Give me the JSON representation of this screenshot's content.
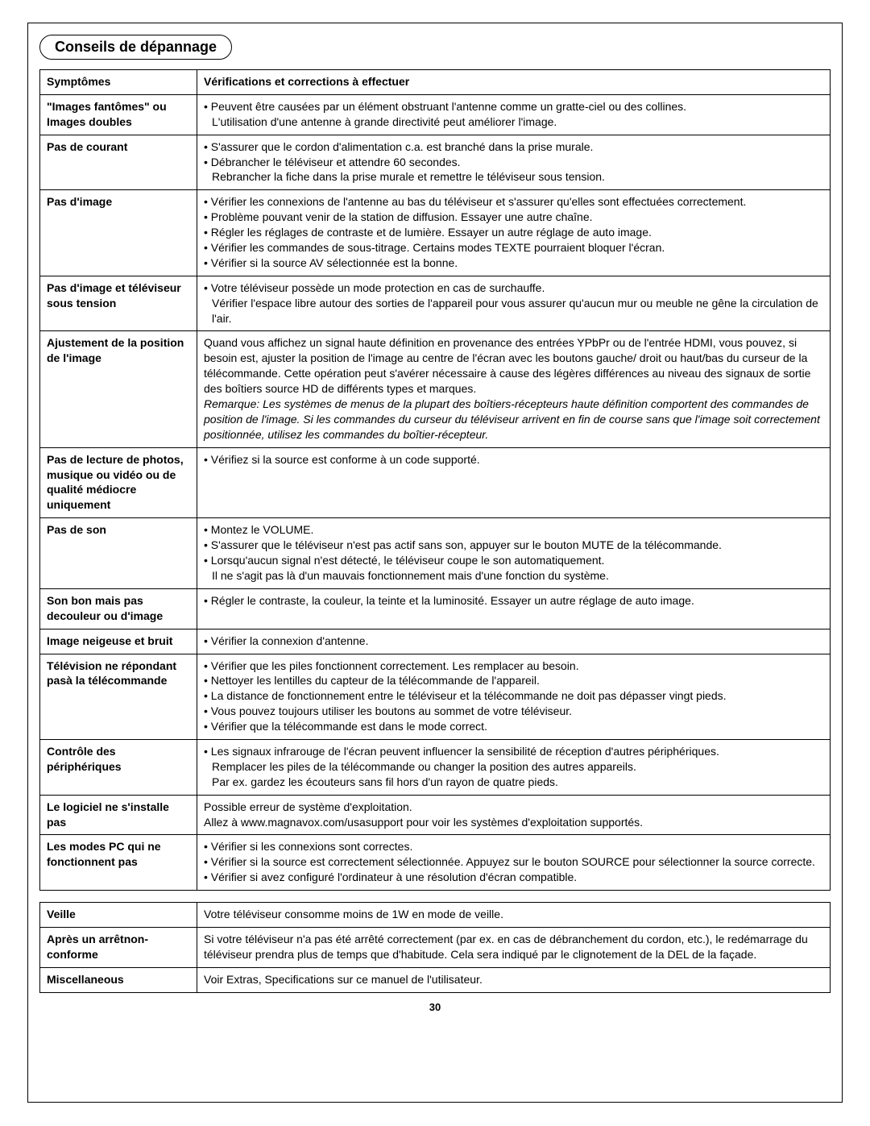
{
  "title": "Conseils de dépannage",
  "header": {
    "symptom": "Symptômes",
    "solution": "Vérifications et corrections à effectuer"
  },
  "rows": [
    {
      "symptom": "\"Images fantômes\" ou Images doubles",
      "bullets": [
        "Peuvent être causées par un élément obstruant l'antenne comme un gratte-ciel ou des collines."
      ],
      "tail": "L'utilisation d'une antenne à grande directivité peut améliorer l'image."
    },
    {
      "symptom": "Pas de courant",
      "bullets": [
        "S'assurer que le cordon d'alimentation c.a. est branché dans la prise murale.",
        "Débrancher le téléviseur et attendre 60 secondes."
      ],
      "tail": "Rebrancher la fiche dans la prise murale et remettre le téléviseur sous tension."
    },
    {
      "symptom": "Pas d'image",
      "bullets": [
        "Vérifier les connexions de l'antenne au bas du téléviseur et s'assurer qu'elles sont effectuées correctement.",
        "Problème pouvant venir de la station de diffusion. Essayer une autre chaîne.",
        "Régler les réglages de contraste et de lumière. Essayer un autre réglage de auto image.",
        "Vérifier les commandes de sous-titrage. Certains modes TEXTE pourraient bloquer l'écran.",
        "Vérifier si la source AV sélectionnée est la bonne."
      ]
    },
    {
      "symptom": "Pas d'image et téléviseur sous tension",
      "bullets": [
        "Votre téléviseur possède un mode protection en cas de surchauffe."
      ],
      "tail": "Vérifier l'espace libre autour des sorties de l'appareil pour vous assurer qu'aucun mur ou meuble ne gêne la circulation de l'air."
    },
    {
      "symptom": "Ajustement de la position de l'image",
      "plain": "Quand vous affichez un signal haute définition en provenance des entrées YPbPr ou de l'entrée HDMI, vous pouvez, si besoin est, ajuster la position de l'image au centre de l'écran avec les boutons gauche/ droit ou haut/bas du curseur de la télécommande. Cette opération peut s'avérer nécessaire à cause des légères différences au niveau des signaux de sortie des boîtiers source HD de différents types et marques.",
      "italic": "Remarque: Les systèmes de menus de la plupart des boîtiers-récepteurs haute définition comportent des commandes de position de l'image. Si les commandes du curseur du téléviseur arrivent en fin de course sans que l'image soit correctement positionnée, utilisez les commandes du boîtier-récepteur."
    },
    {
      "symptom": "Pas de lecture de photos, musique ou vidéo ou de qualité médiocre uniquement",
      "bullets": [
        "Vérifiez si la source est conforme à un code supporté."
      ]
    },
    {
      "symptom": "Pas de son",
      "bullets": [
        "Montez le VOLUME.",
        "S'assurer que le téléviseur n'est pas actif sans son, appuyer sur le bouton MUTE de la télécommande.",
        "Lorsqu'aucun signal n'est détecté, le téléviseur coupe le son automatiquement."
      ],
      "tail": "Il ne s'agit pas là d'un mauvais fonctionnement mais d'une fonction du système."
    },
    {
      "symptom": "Son bon mais pas decouleur ou d'image",
      "bullets": [
        "Régler le contraste, la couleur, la teinte et la luminosité. Essayer un autre réglage de auto image."
      ]
    },
    {
      "symptom": "Image neigeuse et bruit",
      "bullets": [
        "Vérifier la connexion d'antenne."
      ]
    },
    {
      "symptom": "Télévision ne répondant pasà la télécommande",
      "bullets": [
        "Vérifier que les piles fonctionnent correctement. Les remplacer au besoin.",
        "Nettoyer les lentilles du capteur de la télécommande de l'appareil.",
        "La distance de fonctionnement entre le téléviseur et la télécommande ne doit pas dépasser vingt pieds.",
        "Vous pouvez toujours utiliser les boutons au sommet de votre téléviseur.",
        "Vérifier que la télécommande est dans le mode correct."
      ]
    },
    {
      "symptom": "Contrôle des périphériques",
      "bullets": [
        "Les signaux infrarouge de l'écran peuvent influencer la sensibilité de réception d'autres périphériques."
      ],
      "tail": "Remplacer les piles de la télécommande ou changer la position des autres appareils.\nPar ex. gardez les écouteurs sans fil hors d'un rayon de quatre pieds."
    },
    {
      "symptom": "Le logiciel ne s'installe pas",
      "plain": "Possible erreur de système d'exploitation.\nAllez à www.magnavox.com/usasupport pour voir les systèmes d'exploitation supportés."
    },
    {
      "symptom": "Les modes PC qui ne fonctionnent pas",
      "bullets": [
        "Vérifier si les connexions sont correctes.",
        "Vérifier si la source est correctement sélectionnée. Appuyez sur le bouton SOURCE pour sélectionner la source correcte.",
        "Vérifier si avez configuré l'ordinateur à une résolution d'écran compatible."
      ]
    }
  ],
  "secondRows": [
    {
      "symptom": "Veille",
      "plain": "Votre téléviseur consomme moins de 1W en mode de veille."
    },
    {
      "symptom": "Après un arrêtnon-conforme",
      "plain": "Si votre téléviseur n'a pas été arrêté correctement (par ex. en cas de débranchement du cordon, etc.), le redémarrage du téléviseur prendra plus de temps que d'habitude. Cela sera indiqué par le clignotement de la DEL de la façade."
    },
    {
      "symptom": "Miscellaneous",
      "plain": "Voir Extras, Specifications sur ce manuel de l'utilisateur."
    }
  ],
  "pageNumber": "30"
}
